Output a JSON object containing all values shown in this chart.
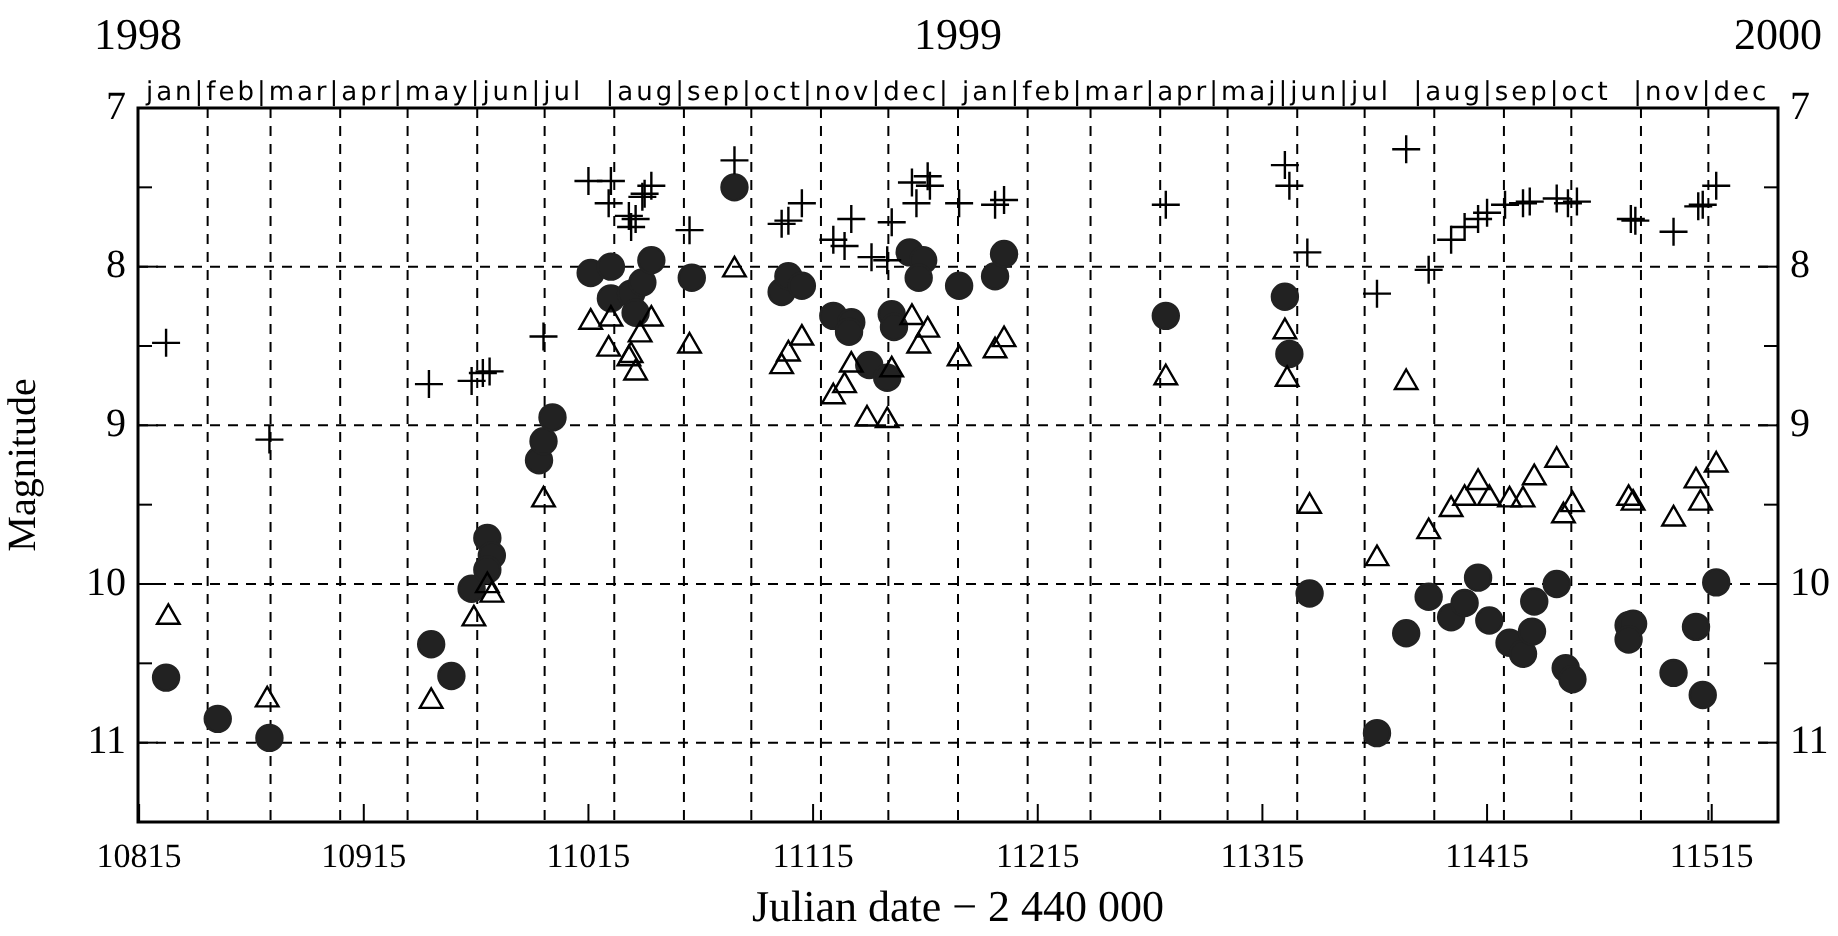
{
  "chart_data": {
    "type": "scatter",
    "xlabel": "Julian date − 2 440 000",
    "ylabel": "Magnitude",
    "xlim": [
      10814.5,
      11544.5
    ],
    "xticks": [
      10815,
      10915,
      11015,
      11115,
      11215,
      11315,
      11415,
      11515
    ],
    "x2lim": [
      1998,
      2000
    ],
    "x2ticks": [
      1998,
      1999,
      2000
    ],
    "annotations": [
      "jan|feb|mar|apr|may|jun|jul  |aug|sep|oct|nov|dec| jan|feb|mar|apr|maj|jun|jul  |aug|sep|oct  |nov|dec"
    ],
    "ref_lines": [
      {
        "axis": "x",
        "value": 10845.5,
        "line_style": "dashed",
        "color": "#000000"
      },
      {
        "axis": "x",
        "value": 10873.5,
        "line_style": "dashed",
        "color": "#000000"
      },
      {
        "axis": "x",
        "value": 10904.5,
        "line_style": "dashed",
        "color": "#000000"
      },
      {
        "axis": "x",
        "value": 10934.5,
        "line_style": "dashed",
        "color": "#000000"
      },
      {
        "axis": "x",
        "value": 10965.5,
        "line_style": "dashed",
        "color": "#000000"
      },
      {
        "axis": "x",
        "value": 10995.5,
        "line_style": "dashed",
        "color": "#000000"
      },
      {
        "axis": "x",
        "value": 11026.5,
        "line_style": "dashed",
        "color": "#000000"
      },
      {
        "axis": "x",
        "value": 11057.5,
        "line_style": "dashed",
        "color": "#000000"
      },
      {
        "axis": "x",
        "value": 11087.5,
        "line_style": "dashed",
        "color": "#000000"
      },
      {
        "axis": "x",
        "value": 11118.5,
        "line_style": "dashed",
        "color": "#000000"
      },
      {
        "axis": "x",
        "value": 11148.5,
        "line_style": "dashed",
        "color": "#000000"
      },
      {
        "axis": "x",
        "value": 11179.5,
        "line_style": "dashed",
        "color": "#000000"
      },
      {
        "axis": "x",
        "value": 11210.5,
        "line_style": "dashed",
        "color": "#000000"
      },
      {
        "axis": "x",
        "value": 11238.5,
        "line_style": "dashed",
        "color": "#000000"
      },
      {
        "axis": "x",
        "value": 11269.5,
        "line_style": "dashed",
        "color": "#000000"
      },
      {
        "axis": "x",
        "value": 11299.5,
        "line_style": "dashed",
        "color": "#000000"
      },
      {
        "axis": "x",
        "value": 11330.5,
        "line_style": "dashed",
        "color": "#000000"
      },
      {
        "axis": "x",
        "value": 11360.5,
        "line_style": "dashed",
        "color": "#000000"
      },
      {
        "axis": "x",
        "value": 11391.5,
        "line_style": "dashed",
        "color": "#000000"
      },
      {
        "axis": "x",
        "value": 11422.5,
        "line_style": "dashed",
        "color": "#000000"
      },
      {
        "axis": "x",
        "value": 11452.5,
        "line_style": "dashed",
        "color": "#000000"
      },
      {
        "axis": "x",
        "value": 11483.5,
        "line_style": "dashed",
        "color": "#000000"
      },
      {
        "axis": "x",
        "value": 11513.5,
        "line_style": "dashed",
        "color": "#000000"
      }
    ],
    "ylim": [
      11.5,
      7
    ],
    "yticks": [
      7,
      {
        "value": 7.5,
        "label": null
      },
      8,
      {
        "value": 8.5,
        "label": null
      },
      9,
      {
        "value": 9.5,
        "label": null
      },
      10,
      {
        "value": 10.5,
        "label": null
      },
      11
    ],
    "y2lim": [
      11.5,
      7
    ],
    "y2ticks": [
      7,
      {
        "value": 7.5,
        "label": null
      },
      8,
      {
        "value": 8.5,
        "label": null
      },
      9,
      {
        "value": 9.5,
        "label": null
      },
      10,
      {
        "value": 10.5,
        "label": null
      },
      11
    ],
    "grid": "y",
    "legend": false,
    "series": [
      {
        "marker": "cross",
        "color": "#000000",
        "x": [
          10827,
          10873,
          10944,
          10963,
          10968,
          10971,
          10995,
          11015,
          11025,
          11024,
          11033,
          11034,
          11039,
          11043,
          11040,
          11036,
          11060,
          11080,
          11101,
          11104,
          11110,
          11124,
          11132,
          11129,
          11141,
          11148,
          11150,
          11159,
          11166,
          11161,
          11167,
          11180,
          11196,
          11200,
          11272,
          11325,
          11327,
          11335,
          11366,
          11379,
          11389,
          11399,
          11405,
          11411,
          11415,
          11423,
          11431,
          11434,
          11446,
          11451,
          11455,
          11479,
          11481,
          11498,
          11509,
          11511,
          11517
        ],
        "values": [
          8.48,
          9.09,
          8.74,
          8.72,
          8.67,
          8.66,
          8.44,
          7.46,
          7.46,
          7.6,
          7.68,
          7.75,
          7.56,
          7.49,
          7.54,
          7.7,
          7.77,
          7.33,
          7.73,
          7.71,
          7.6,
          7.83,
          7.7,
          7.87,
          7.94,
          7.96,
          7.72,
          7.47,
          7.43,
          7.6,
          7.49,
          7.6,
          7.61,
          7.58,
          7.61,
          7.36,
          7.49,
          7.91,
          8.17,
          7.26,
          8.02,
          7.83,
          7.75,
          7.7,
          7.66,
          7.61,
          7.6,
          7.59,
          7.57,
          7.6,
          7.59,
          7.7,
          7.71,
          7.78,
          7.62,
          7.61,
          7.49
        ]
      },
      {
        "marker": "triangle",
        "color": "#000000",
        "x": [
          10828,
          10872,
          10945,
          10964,
          10970,
          10972,
          10995,
          11016,
          11025,
          11024,
          11033,
          11036,
          11038,
          11043,
          11034,
          11060,
          11080,
          11101,
          11104,
          11110,
          11124,
          11129,
          11132,
          11139,
          11148,
          11150,
          11159,
          11162,
          11166,
          11180,
          11196,
          11200,
          11272,
          11325,
          11326,
          11336,
          11366,
          11379,
          11389,
          11399,
          11405,
          11411,
          11416,
          11425,
          11431,
          11436,
          11446,
          11449,
          11453,
          11478,
          11480,
          11498,
          11508,
          11510,
          11517
        ],
        "values": [
          10.21,
          10.73,
          10.74,
          10.22,
          10.01,
          10.07,
          9.47,
          8.35,
          8.33,
          8.52,
          8.58,
          8.67,
          8.43,
          8.33,
          8.56,
          8.5,
          8.02,
          8.63,
          8.55,
          8.45,
          8.82,
          8.75,
          8.62,
          8.96,
          8.97,
          8.65,
          8.32,
          8.5,
          8.4,
          8.58,
          8.53,
          8.46,
          8.7,
          8.41,
          8.71,
          9.51,
          9.84,
          8.73,
          9.67,
          9.53,
          9.46,
          9.36,
          9.46,
          9.47,
          9.47,
          9.33,
          9.22,
          9.57,
          9.5,
          9.46,
          9.49,
          9.59,
          9.35,
          9.49,
          9.25
        ]
      },
      {
        "marker": "circle",
        "color": "#222222",
        "x": [
          10827,
          10850,
          10873,
          10945,
          10954,
          10963,
          10970,
          10972,
          10970,
          10993,
          10995,
          10999,
          11016,
          11025,
          11025,
          11034,
          11036,
          11039,
          11043,
          11061,
          11080,
          11101,
          11104,
          11110,
          11124,
          11132,
          11131,
          11140,
          11148,
          11150,
          11151,
          11158,
          11164,
          11162,
          11180,
          11196,
          11200,
          11272,
          11325,
          11327,
          11336,
          11366,
          11379,
          11389,
          11399,
          11405,
          11411,
          11416,
          11425,
          11431,
          11435,
          11436,
          11446,
          11450,
          11453,
          11478,
          11480,
          11478,
          11498,
          11508,
          11511,
          11517
        ],
        "values": [
          10.59,
          10.85,
          10.97,
          10.38,
          10.58,
          10.03,
          9.71,
          9.82,
          9.91,
          9.22,
          9.1,
          8.95,
          8.04,
          8.0,
          8.2,
          8.17,
          8.29,
          8.1,
          7.96,
          8.07,
          7.5,
          8.16,
          8.06,
          8.12,
          8.31,
          8.35,
          8.41,
          8.62,
          8.7,
          8.3,
          8.38,
          7.91,
          7.96,
          8.07,
          8.12,
          8.06,
          7.92,
          8.31,
          8.19,
          8.55,
          10.06,
          10.94,
          10.31,
          10.08,
          10.21,
          10.12,
          9.96,
          10.23,
          10.37,
          10.44,
          10.3,
          10.11,
          10.0,
          10.53,
          10.6,
          10.26,
          10.25,
          10.35,
          10.56,
          10.27,
          10.7,
          9.99
        ]
      }
    ]
  }
}
